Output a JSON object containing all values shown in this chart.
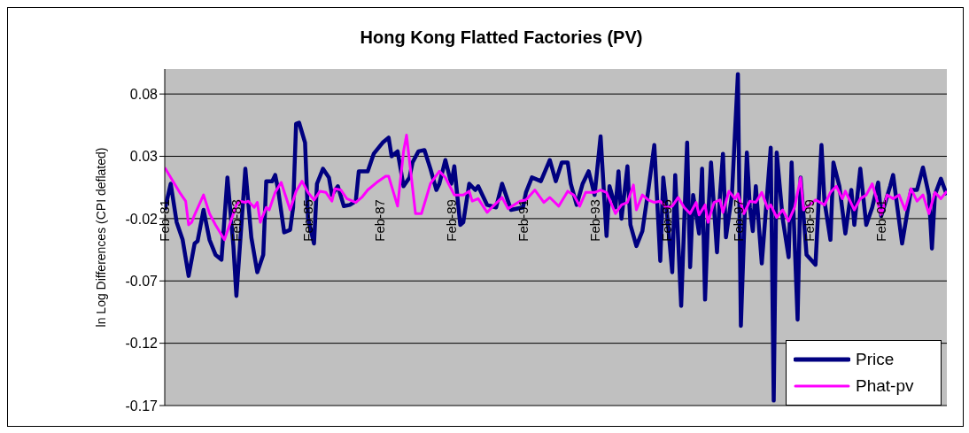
{
  "chart_data": {
    "type": "line",
    "title": "Hong Kong Flatted Factories (PV)",
    "ylabel": "ln Log Differences (CPI deflated)",
    "xlim": [
      "1981-02",
      "2002-12"
    ],
    "xticks": [
      {
        "value": "1981-02",
        "label": "Feb-81"
      },
      {
        "value": "1983-02",
        "label": "Feb-83"
      },
      {
        "value": "1985-02",
        "label": "Feb-85"
      },
      {
        "value": "1987-02",
        "label": "Feb-87"
      },
      {
        "value": "1989-02",
        "label": "Feb-89"
      },
      {
        "value": "1991-02",
        "label": "Feb-91"
      },
      {
        "value": "1993-02",
        "label": "Feb-93"
      },
      {
        "value": "1995-02",
        "label": "Feb-95"
      },
      {
        "value": "1997-02",
        "label": "Feb-97"
      },
      {
        "value": "1999-02",
        "label": "Feb-99"
      },
      {
        "value": "2001-02",
        "label": "Feb-01"
      }
    ],
    "ylim": [
      -0.17,
      0.1
    ],
    "yticks": [
      -0.17,
      -0.12,
      -0.07,
      -0.02,
      0.03,
      0.08
    ],
    "grid": "y",
    "legend": "bottom right",
    "marker": "none",
    "line_style": "solid",
    "series": [
      {
        "name": "Price",
        "color": "#000080",
        "x": [
          "1981-02",
          "1981-04",
          "1981-06",
          "1981-08",
          "1981-10",
          "1981-12",
          "1982-01",
          "1982-03",
          "1982-05",
          "1982-07",
          "1982-09",
          "1982-11",
          "1983-01",
          "1983-02",
          "1983-05",
          "1983-07",
          "1983-09",
          "1983-11",
          "1983-12",
          "1984-02",
          "1984-03",
          "1984-04",
          "1984-06",
          "1984-08",
          "1984-09",
          "1984-10",
          "1984-11",
          "1985-01",
          "1985-02",
          "1985-04",
          "1985-05",
          "1985-07",
          "1985-09",
          "1985-10",
          "1985-12",
          "1986-02",
          "1986-04",
          "1986-06",
          "1986-07",
          "1986-10",
          "1986-12",
          "1987-03",
          "1987-05",
          "1987-06",
          "1987-08",
          "1987-10",
          "1987-12",
          "1988-01",
          "1988-03",
          "1988-05",
          "1988-07",
          "1988-09",
          "1988-10",
          "1988-12",
          "1989-02",
          "1989-03",
          "1989-05",
          "1989-06",
          "1989-08",
          "1989-10",
          "1989-11",
          "1990-02",
          "1990-05",
          "1990-07",
          "1990-10",
          "1991-02",
          "1991-03",
          "1991-05",
          "1991-08",
          "1991-11",
          "1992-01",
          "1992-03",
          "1992-05",
          "1992-06",
          "1992-08",
          "1992-10",
          "1992-12",
          "1993-02",
          "1993-04",
          "1993-06",
          "1993-07",
          "1993-09",
          "1993-10",
          "1993-11",
          "1994-01",
          "1994-02",
          "1994-04",
          "1994-06",
          "1994-08",
          "1994-10",
          "1994-12",
          "1995-01",
          "1995-02",
          "1995-04",
          "1995-05",
          "1995-07",
          "1995-09",
          "1995-10",
          "1995-11",
          "1996-01",
          "1996-02",
          "1996-03",
          "1996-04",
          "1996-05",
          "1996-07",
          "1996-08",
          "1996-09",
          "1996-10",
          "1996-12",
          "1997-02",
          "1997-03",
          "1997-05",
          "1997-06",
          "1997-07",
          "1997-08",
          "1997-10",
          "1998-01",
          "1998-02",
          "1998-03",
          "1998-05",
          "1998-07",
          "1998-08",
          "1998-10",
          "1998-11",
          "1999-01",
          "1999-04",
          "1999-06",
          "1999-07",
          "1999-09",
          "1999-10",
          "1999-12",
          "2000-02",
          "2000-04",
          "2000-05",
          "2000-07",
          "2000-09",
          "2000-11",
          "2001-01",
          "2001-02",
          "2001-05",
          "2001-06",
          "2001-09",
          "2001-12",
          "2002-02",
          "2002-04",
          "2002-06",
          "2002-07",
          "2002-08",
          "2002-10",
          "2002-12"
        ],
        "values": [
          -0.013,
          0.008,
          -0.023,
          -0.037,
          -0.066,
          -0.04,
          -0.038,
          -0.013,
          -0.037,
          -0.049,
          -0.053,
          0.013,
          -0.042,
          -0.082,
          0.02,
          -0.035,
          -0.063,
          -0.049,
          0.01,
          0.01,
          0.015,
          0.003,
          -0.031,
          -0.029,
          -0.011,
          0.056,
          0.057,
          0.041,
          -0.02,
          -0.04,
          0.008,
          0.02,
          0.013,
          -0.001,
          0.006,
          -0.01,
          -0.009,
          -0.006,
          0.018,
          0.018,
          0.032,
          0.041,
          0.045,
          0.03,
          0.034,
          0.006,
          0.013,
          0.025,
          0.034,
          0.035,
          0.02,
          0.003,
          0.008,
          0.027,
          0.008,
          0.022,
          -0.025,
          -0.023,
          0.008,
          0.003,
          0.006,
          -0.009,
          -0.011,
          0.008,
          -0.013,
          -0.011,
          0.001,
          0.013,
          0.01,
          0.027,
          0.01,
          0.025,
          0.025,
          0.008,
          -0.009,
          0.008,
          0.018,
          -0.001,
          0.046,
          -0.034,
          0.006,
          -0.011,
          0.018,
          -0.02,
          0.022,
          -0.025,
          -0.042,
          -0.03,
          0.003,
          0.039,
          -0.054,
          0.013,
          -0.009,
          -0.063,
          0.015,
          -0.09,
          0.041,
          -0.059,
          -0.001,
          -0.032,
          0.02,
          -0.085,
          -0.02,
          0.025,
          -0.047,
          -0.001,
          0.032,
          -0.035,
          -0.001,
          0.096,
          -0.106,
          0.033,
          -0.011,
          -0.03,
          0.006,
          -0.056,
          0.037,
          -0.166,
          0.033,
          -0.02,
          -0.051,
          0.025,
          -0.101,
          0.013,
          -0.049,
          -0.057,
          0.039,
          -0.006,
          -0.037,
          0.025,
          0.006,
          -0.032,
          0.003,
          -0.025,
          0.02,
          -0.025,
          -0.011,
          0.009,
          -0.018,
          0.006,
          0.015,
          -0.04,
          0.003,
          0.003,
          0.021,
          -0.001,
          -0.044,
          -0.001,
          0.012,
          -0.001
        ]
      },
      {
        "name": "Phat-pv",
        "color": "#ff00ff",
        "x": [
          "1981-02",
          "1981-04",
          "1981-07",
          "1981-09",
          "1981-10",
          "1981-11",
          "1981-12",
          "1982-03",
          "1982-05",
          "1982-07",
          "1982-10",
          "1982-12",
          "1983-02",
          "1983-03",
          "1983-05",
          "1983-06",
          "1983-08",
          "1983-09",
          "1983-10",
          "1983-12",
          "1984-01",
          "1984-03",
          "1984-05",
          "1984-08",
          "1984-10",
          "1984-12",
          "1985-02",
          "1985-04",
          "1985-06",
          "1985-08",
          "1985-10",
          "1985-11",
          "1986-01",
          "1986-03",
          "1986-06",
          "1986-08",
          "1986-10",
          "1987-01",
          "1987-04",
          "1987-05",
          "1987-08",
          "1987-10",
          "1987-11",
          "1988-02",
          "1988-04",
          "1988-07",
          "1988-10",
          "1988-12",
          "1989-03",
          "1989-06",
          "1989-08",
          "1989-09",
          "1989-11",
          "1990-02",
          "1990-04",
          "1990-07",
          "1990-09",
          "1991-01",
          "1991-03",
          "1991-06",
          "1991-09",
          "1991-11",
          "1992-02",
          "1992-05",
          "1992-07",
          "1992-09",
          "1992-11",
          "1993-02",
          "1993-04",
          "1993-06",
          "1993-09",
          "1993-11",
          "1994-01",
          "1994-03",
          "1994-04",
          "1994-06",
          "1994-08",
          "1994-10",
          "1994-12",
          "1995-02",
          "1995-04",
          "1995-06",
          "1995-08",
          "1995-10",
          "1995-12",
          "1996-01",
          "1996-03",
          "1996-04",
          "1996-06",
          "1996-08",
          "1996-09",
          "1996-11",
          "1997-01",
          "1997-02",
          "1997-04",
          "1997-06",
          "1997-08",
          "1997-10",
          "1997-12",
          "1998-01",
          "1998-03",
          "1998-05",
          "1998-07",
          "1998-09",
          "1998-11",
          "1998-12",
          "1999-02",
          "1999-04",
          "1999-07",
          "1999-09",
          "1999-11",
          "2000-01",
          "2000-02",
          "2000-05",
          "2000-07",
          "2000-09",
          "2000-11",
          "2001-02",
          "2001-04",
          "2001-06",
          "2001-08",
          "2001-10",
          "2001-12",
          "2002-02",
          "2002-04",
          "2002-06",
          "2002-08",
          "2002-10",
          "2002-12"
        ],
        "values": [
          0.021,
          0.013,
          0.001,
          -0.006,
          -0.025,
          -0.023,
          -0.017,
          -0.001,
          -0.016,
          -0.025,
          -0.037,
          -0.023,
          -0.009,
          -0.006,
          -0.007,
          -0.006,
          -0.011,
          -0.007,
          -0.023,
          -0.011,
          -0.013,
          0.001,
          0.009,
          -0.013,
          0.002,
          0.01,
          0.001,
          -0.005,
          0.002,
          0.001,
          -0.006,
          0.004,
          0.003,
          -0.004,
          -0.007,
          -0.003,
          0.003,
          0.009,
          0.014,
          0.014,
          -0.01,
          0.034,
          0.047,
          -0.016,
          -0.016,
          0.008,
          0.018,
          0.013,
          -0.001,
          -0.001,
          0.002,
          -0.006,
          -0.004,
          -0.015,
          -0.01,
          -0.003,
          -0.012,
          -0.006,
          -0.005,
          0.003,
          -0.007,
          -0.003,
          -0.01,
          0.002,
          -0.001,
          -0.01,
          0.001,
          0.001,
          0.003,
          0.001,
          -0.016,
          -0.009,
          -0.007,
          0.007,
          -0.013,
          -0.001,
          -0.005,
          -0.007,
          -0.006,
          -0.011,
          -0.01,
          -0.003,
          -0.011,
          -0.016,
          -0.007,
          -0.017,
          -0.009,
          -0.023,
          -0.007,
          -0.005,
          -0.015,
          0.002,
          -0.004,
          0.0,
          -0.016,
          -0.006,
          -0.007,
          0.001,
          -0.012,
          -0.009,
          -0.019,
          -0.013,
          -0.022,
          -0.011,
          0.013,
          -0.013,
          -0.009,
          -0.005,
          -0.009,
          0.001,
          0.006,
          -0.004,
          0.002,
          -0.013,
          -0.004,
          -0.001,
          0.008,
          -0.017,
          -0.001,
          -0.004,
          -0.001,
          -0.013,
          0.004,
          -0.006,
          -0.001,
          -0.016,
          0.001,
          -0.004,
          0.002
        ]
      }
    ]
  }
}
